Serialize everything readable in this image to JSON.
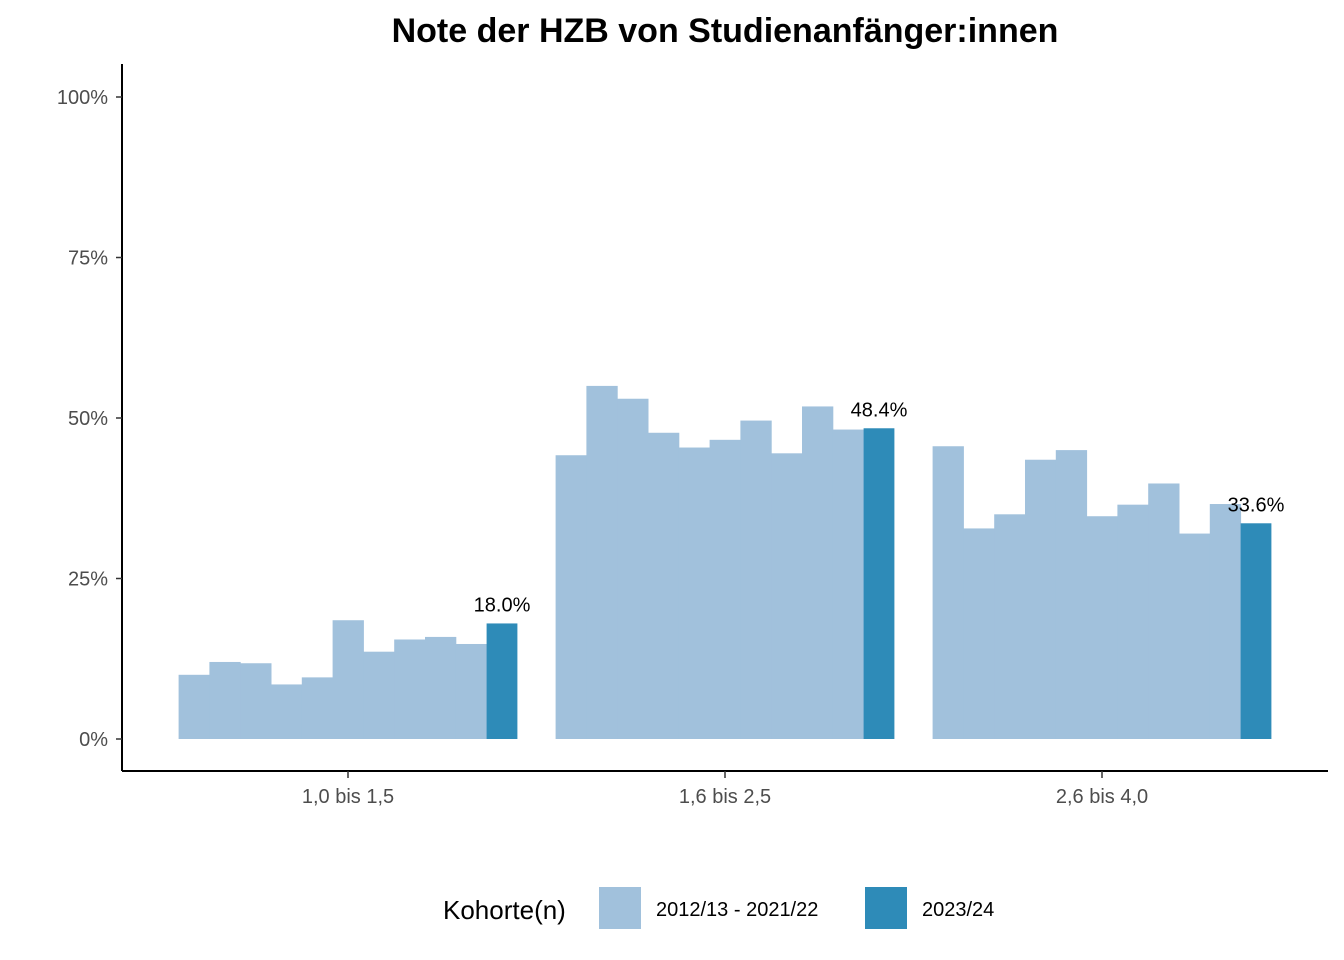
{
  "chart_data": {
    "type": "bar",
    "title": "Note der HZB von Studienanfänger:innen",
    "xlabel": "",
    "ylabel": "",
    "ylim": [
      0,
      105
    ],
    "y_ticks": [
      0,
      25,
      50,
      75,
      100
    ],
    "y_tick_labels": [
      "0%",
      "25%",
      "50%",
      "75%",
      "100%"
    ],
    "categories": [
      "1,0 bis 1,5",
      "1,6 bis 2,5",
      "2,6 bis 4,0"
    ],
    "series": [
      {
        "name": "2012/13 - 2021/22",
        "color": "#a1c1dc",
        "values": [
          [
            10.0,
            12.0,
            11.8,
            8.5,
            9.6,
            18.5,
            13.6,
            15.5,
            15.9,
            14.8
          ],
          [
            44.2,
            55.0,
            53.0,
            47.7,
            45.4,
            46.6,
            49.6,
            44.5,
            51.8,
            48.2
          ],
          [
            45.6,
            32.8,
            35.0,
            43.5,
            45.0,
            34.7,
            36.5,
            39.8,
            32.0,
            36.6
          ]
        ]
      },
      {
        "name": "2023/24",
        "color": "#2e8bb8",
        "values": [
          18.0,
          48.4,
          33.6
        ],
        "labels": [
          "18.0%",
          "48.4%",
          "33.6%"
        ]
      }
    ],
    "legend": {
      "title": "Kohorte(n)",
      "position": "bottom",
      "entries": [
        "2012/13 - 2021/22",
        "2023/24"
      ]
    },
    "grid": false
  }
}
